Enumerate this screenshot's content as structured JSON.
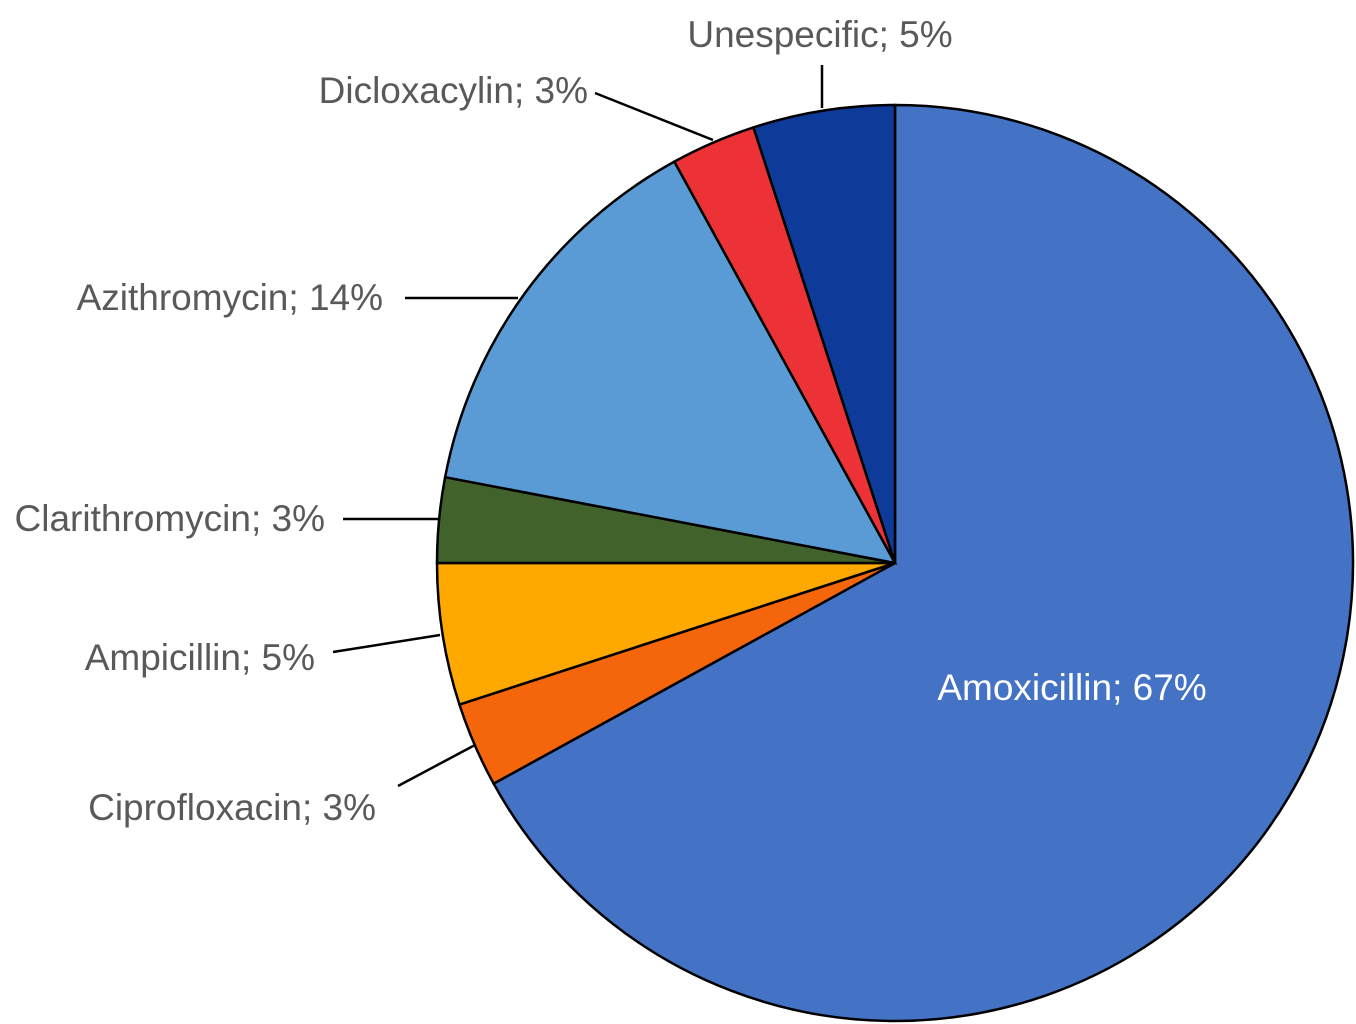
{
  "chart_data": {
    "type": "pie",
    "values": [
      67,
      3,
      5,
      3,
      14,
      3,
      5
    ],
    "value_labels": [
      "Amoxicillin; 67%",
      "Ciprofloxacin; 3%",
      "Ampicillin; 5%",
      "Clarithromycin; 3%",
      "Azithromycin; 14%",
      "Dicloxacylin; 3%",
      "Unespecific; 5%"
    ],
    "colors": [
      "#4472c4",
      "#f4650c",
      "#ffa800",
      "#41622b",
      "#5b9bd5",
      "#ec3237",
      "#0e3a9a"
    ]
  }
}
